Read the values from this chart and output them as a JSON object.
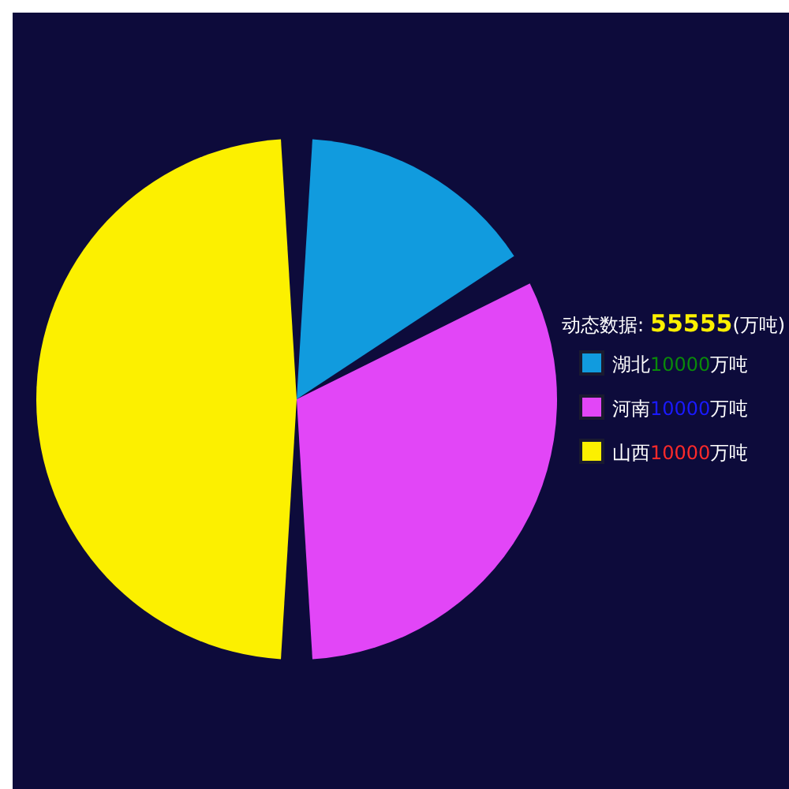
{
  "chart_data": {
    "type": "pie",
    "categories": [
      "湖北",
      "河南",
      "山西"
    ],
    "values": [
      16.7,
      33.3,
      50
    ],
    "colors": [
      "#119bde",
      "#e246f7",
      "#fcf000"
    ],
    "legend": "right",
    "annotations": [
      "动态数据:",
      "55555",
      "(万吨)",
      "10000",
      "万吨",
      "10000",
      "万吨",
      "10000",
      "万吨"
    ]
  }
}
